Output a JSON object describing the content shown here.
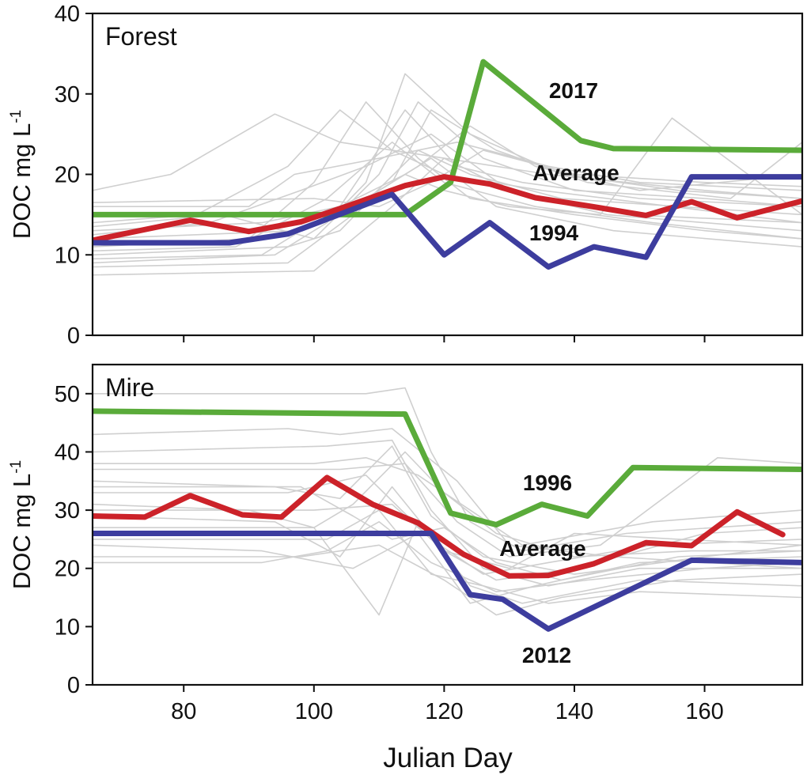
{
  "xlabel": "Julian Day",
  "colors": {
    "background_lines": "#cfcfcf",
    "green": "#5aab3a",
    "red": "#cc2229",
    "blue": "#3d3d9e",
    "axis": "#111111"
  },
  "chart_data": [
    {
      "type": "line",
      "title": "Forest",
      "ylabel_main": "DOC mg L",
      "ylabel_sup": "-1",
      "xlabel": "",
      "xlim": [
        66,
        175
      ],
      "ylim": [
        0,
        40
      ],
      "xticks": [
        80,
        100,
        120,
        140,
        160
      ],
      "yticks": [
        0,
        10,
        20,
        30,
        40
      ],
      "show_xtick_labels": false,
      "series": [
        {
          "name": "2017",
          "color": "#5aab3a",
          "label": "2017",
          "x": [
            66,
            114,
            121,
            126,
            141,
            146,
            175
          ],
          "y": [
            15,
            15,
            19,
            34,
            24.2,
            23.2,
            23
          ]
        },
        {
          "name": "Average",
          "color": "#cc2229",
          "label": "Average",
          "x": [
            66,
            81,
            90,
            98,
            106,
            114,
            120,
            127,
            134,
            142,
            151,
            158,
            165,
            175
          ],
          "y": [
            11.8,
            14.3,
            12.9,
            14.1,
            16.3,
            18.6,
            19.7,
            18.8,
            17.1,
            16.1,
            14.9,
            16.6,
            14.6,
            16.7
          ]
        },
        {
          "name": "1994",
          "color": "#3d3d9e",
          "label": "1994",
          "x": [
            66,
            87,
            96,
            112,
            120,
            127,
            136,
            143,
            151,
            158,
            175
          ],
          "y": [
            11.5,
            11.5,
            12.6,
            17.5,
            10,
            14,
            8.5,
            11,
            9.7,
            19.7,
            19.7
          ]
        }
      ],
      "background_series": [
        {
          "x": [
            66,
            100,
            112,
            120,
            130,
            145,
            160,
            175
          ],
          "y": [
            7.5,
            8,
            16,
            22,
            18,
            15,
            14,
            13
          ]
        },
        {
          "x": [
            66,
            96,
            106,
            116,
            124,
            138,
            156,
            175
          ],
          "y": [
            8.5,
            9,
            15,
            23,
            20,
            17,
            16,
            15
          ]
        },
        {
          "x": [
            66,
            92,
            104,
            114,
            122,
            132,
            150,
            175
          ],
          "y": [
            9.5,
            10,
            16,
            28,
            21,
            19,
            17,
            16
          ]
        },
        {
          "x": [
            66,
            88,
            102,
            112,
            120,
            134,
            152,
            175
          ],
          "y": [
            10.5,
            11,
            17,
            24,
            19,
            16,
            14,
            12
          ]
        },
        {
          "x": [
            66,
            84,
            98,
            108,
            118,
            130,
            148,
            175
          ],
          "y": [
            12.5,
            14,
            18,
            21,
            25,
            18,
            15,
            14
          ]
        },
        {
          "x": [
            66,
            86,
            100,
            110,
            116,
            126,
            140,
            160,
            175
          ],
          "y": [
            13.5,
            15,
            12,
            20,
            29,
            22,
            18,
            17,
            16
          ]
        },
        {
          "x": [
            66,
            90,
            97,
            110,
            122,
            136,
            150,
            175
          ],
          "y": [
            16,
            16,
            20,
            22,
            24,
            21,
            19,
            18
          ]
        },
        {
          "x": [
            66,
            78,
            94,
            104,
            120,
            136,
            160,
            175
          ],
          "y": [
            18,
            20,
            27.5,
            24,
            22,
            20,
            18,
            17
          ]
        },
        {
          "x": [
            66,
            82,
            96,
            104,
            112,
            120,
            135,
            165,
            175
          ],
          "y": [
            14,
            15,
            21,
            28,
            23,
            20,
            18,
            15,
            14
          ]
        },
        {
          "x": [
            66,
            90,
            100,
            108,
            116,
            124,
            140,
            160,
            175
          ],
          "y": [
            11,
            12,
            19,
            29,
            22,
            17,
            15,
            13,
            12
          ]
        },
        {
          "x": [
            66,
            94,
            102,
            108,
            114,
            124,
            138,
            156,
            175
          ],
          "y": [
            9,
            10,
            14,
            19,
            32.5,
            25,
            20,
            18,
            17
          ]
        },
        {
          "x": [
            66,
            96,
            104,
            110,
            118,
            128,
            146,
            175
          ],
          "y": [
            10,
            11,
            13,
            18,
            22,
            16,
            13,
            11
          ]
        },
        {
          "x": [
            66,
            98,
            106,
            112,
            118,
            128,
            142,
            164,
            175
          ],
          "y": [
            12,
            13,
            16,
            19,
            28,
            23,
            19,
            17,
            24
          ]
        },
        {
          "x": [
            66,
            100,
            108,
            116,
            124,
            134,
            150,
            175
          ],
          "y": [
            15,
            15,
            17,
            21,
            26,
            21,
            18,
            20
          ]
        },
        {
          "x": [
            66,
            92,
            104,
            114,
            120,
            130,
            144,
            155,
            175
          ],
          "y": [
            13,
            14,
            16,
            20,
            18,
            16,
            15,
            27,
            15
          ]
        },
        {
          "x": [
            66,
            100,
            110,
            118,
            126,
            140,
            160,
            175
          ],
          "y": [
            16.5,
            17,
            16,
            19,
            23,
            20,
            19,
            18.5
          ]
        }
      ]
    },
    {
      "type": "line",
      "title": "Mire",
      "ylabel_main": "DOC mg L",
      "ylabel_sup": "-1",
      "xlabel": "Julian Day",
      "xlim": [
        66,
        175
      ],
      "ylim": [
        0,
        55
      ],
      "xticks": [
        80,
        100,
        120,
        140,
        160
      ],
      "yticks": [
        0,
        10,
        20,
        30,
        40,
        50
      ],
      "show_xtick_labels": true,
      "series": [
        {
          "name": "1996",
          "color": "#5aab3a",
          "label": "1996",
          "x": [
            66,
            114,
            121,
            128,
            135,
            142,
            149,
            175
          ],
          "y": [
            47,
            46.5,
            29.5,
            27.5,
            31,
            29,
            37.3,
            37
          ]
        },
        {
          "name": "Average",
          "color": "#cc2229",
          "label": "Average",
          "x": [
            66,
            74,
            81,
            89,
            95,
            102,
            109,
            116,
            123,
            130,
            136,
            143,
            151,
            158,
            165,
            172
          ],
          "y": [
            29,
            28.8,
            32.5,
            29.2,
            28.8,
            35.6,
            31,
            27.8,
            22.4,
            18.7,
            18.8,
            20.8,
            24.4,
            23.9,
            29.7,
            25.8
          ]
        },
        {
          "name": "2012",
          "color": "#3d3d9e",
          "label": "2012",
          "x": [
            66,
            118,
            124,
            129,
            136,
            158,
            175
          ],
          "y": [
            26,
            26,
            15.5,
            14.7,
            9.6,
            21.4,
            21
          ]
        }
      ],
      "background_series": [
        {
          "x": [
            66,
            100,
            112,
            120,
            128,
            140,
            160,
            175
          ],
          "y": [
            30,
            30,
            31,
            23,
            18,
            20,
            26,
            27
          ]
        },
        {
          "x": [
            66,
            96,
            108,
            118,
            126,
            136,
            152,
            175
          ],
          "y": [
            33,
            33,
            36,
            25,
            19,
            21,
            24,
            25
          ]
        },
        {
          "x": [
            66,
            104,
            114,
            122,
            130,
            144,
            162,
            175
          ],
          "y": [
            37,
            37,
            38,
            28,
            22,
            24,
            39,
            38
          ]
        },
        {
          "x": [
            66,
            92,
            106,
            116,
            124,
            134,
            150,
            175
          ],
          "y": [
            24,
            23,
            20,
            26,
            14,
            17,
            21,
            22
          ]
        },
        {
          "x": [
            66,
            98,
            110,
            120,
            128,
            138,
            156,
            175
          ],
          "y": [
            22,
            22,
            24,
            18,
            12,
            15,
            18,
            19
          ]
        },
        {
          "x": [
            66,
            102,
            112,
            118,
            126,
            136,
            150,
            175
          ],
          "y": [
            40,
            41,
            42,
            30,
            20,
            17,
            20,
            20
          ]
        },
        {
          "x": [
            66,
            94,
            104,
            112,
            118,
            126,
            140,
            160,
            175
          ],
          "y": [
            35,
            34,
            32,
            41,
            29,
            22,
            19,
            22,
            24
          ]
        },
        {
          "x": [
            66,
            90,
            100,
            110,
            116,
            124,
            132,
            150,
            175
          ],
          "y": [
            31,
            30,
            27,
            12,
            28,
            17,
            14,
            18,
            17
          ]
        },
        {
          "x": [
            66,
            100,
            106,
            114,
            120,
            128,
            140,
            158,
            175
          ],
          "y": [
            27,
            27,
            31,
            40,
            33,
            26,
            22,
            23,
            23
          ]
        },
        {
          "x": [
            66,
            96,
            104,
            112,
            122,
            130,
            146,
            175
          ],
          "y": [
            43,
            44,
            43,
            44,
            35,
            24,
            22,
            20
          ]
        },
        {
          "x": [
            66,
            108,
            114,
            118,
            124,
            132,
            148,
            175
          ],
          "y": [
            50,
            50,
            51,
            40,
            28,
            23,
            26,
            28
          ]
        },
        {
          "x": [
            66,
            92,
            102,
            110,
            118,
            128,
            142,
            160,
            175
          ],
          "y": [
            21,
            21,
            23,
            28,
            21,
            16,
            18,
            20,
            21
          ]
        },
        {
          "x": [
            66,
            100,
            108,
            116,
            124,
            132,
            152,
            175
          ],
          "y": [
            38,
            38,
            39,
            36,
            30,
            24,
            28,
            30
          ]
        },
        {
          "x": [
            66,
            94,
            104,
            112,
            120,
            130,
            140,
            156,
            175
          ],
          "y": [
            29,
            28,
            22,
            34,
            23,
            20,
            26,
            25,
            24
          ]
        },
        {
          "x": [
            66,
            102,
            110,
            118,
            126,
            136,
            150,
            175
          ],
          "y": [
            25,
            25,
            30,
            19,
            17,
            14,
            16,
            15
          ]
        },
        {
          "x": [
            66,
            98,
            106,
            112,
            120,
            128,
            138,
            156,
            175
          ],
          "y": [
            34,
            34,
            29,
            25,
            27,
            21,
            18,
            22,
            23
          ]
        }
      ]
    }
  ]
}
